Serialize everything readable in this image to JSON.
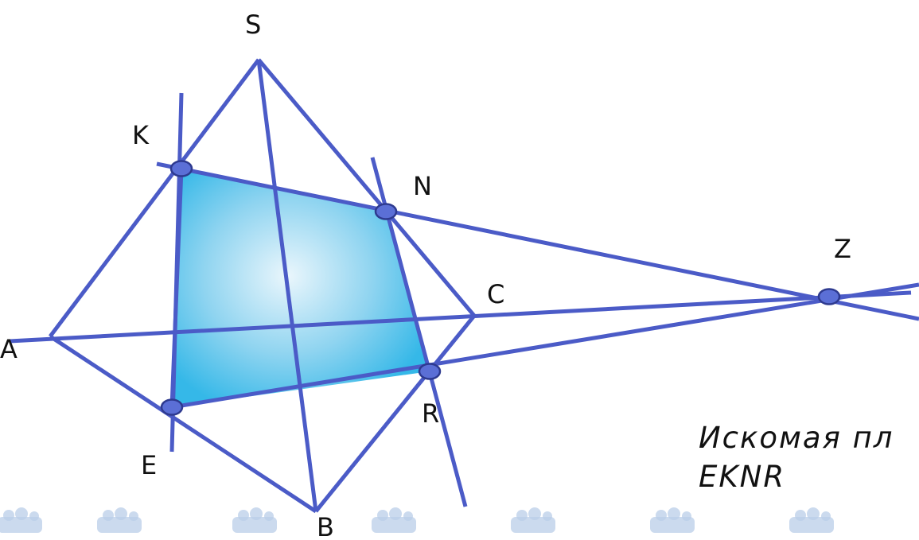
{
  "colors": {
    "edge": "#4b5bc7",
    "section_fill_center": "#eaf6fc",
    "section_fill_edge": "#35b8e8",
    "point_fill": "#5b6fd6",
    "text": "#111111",
    "ornament": "#b9cde8"
  },
  "labels": {
    "S": "S",
    "K": "K",
    "N": "N",
    "Z": "Z",
    "C": "C",
    "A": "A",
    "E": "E",
    "R": "R",
    "B": "B"
  },
  "caption": {
    "line1": "Искомая пл",
    "line2": "EKNR"
  },
  "decoration": {
    "border_ornament": "snowflake-border"
  }
}
